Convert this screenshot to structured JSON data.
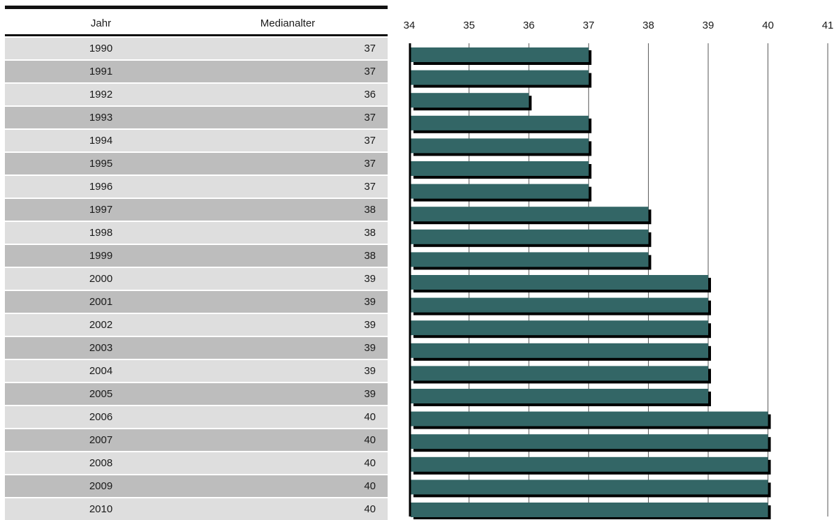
{
  "table": {
    "header_year": "Jahr",
    "header_value": "Medianalter"
  },
  "chart_data": {
    "type": "bar",
    "orientation": "horizontal",
    "title": "",
    "xlabel": "",
    "ylabel": "",
    "xlim": [
      34,
      41
    ],
    "ticks": [
      "34",
      "35",
      "36",
      "37",
      "38",
      "39",
      "40",
      "41"
    ],
    "categories": [
      "1990",
      "1991",
      "1992",
      "1993",
      "1994",
      "1995",
      "1996",
      "1997",
      "1998",
      "1999",
      "2000",
      "2001",
      "2002",
      "2003",
      "2004",
      "2005",
      "2006",
      "2007",
      "2008",
      "2009",
      "2010"
    ],
    "values": [
      37,
      37,
      36,
      37,
      37,
      37,
      37,
      38,
      38,
      38,
      39,
      39,
      39,
      39,
      39,
      39,
      40,
      40,
      40,
      40,
      40
    ],
    "grid": true,
    "bar_color": "#336666",
    "shadow_color": "#000000"
  }
}
